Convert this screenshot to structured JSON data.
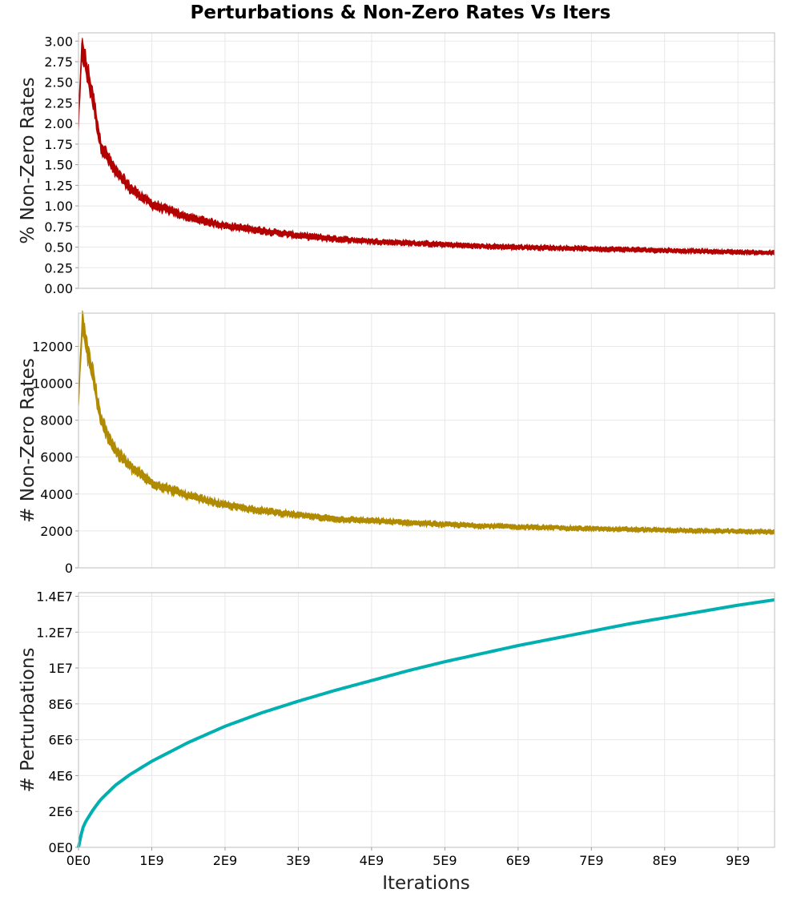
{
  "chart_data": {
    "type": "line",
    "title": "Perturbations & Non-Zero Rates Vs Iters",
    "xlabel": "Iterations",
    "xlim": [
      0,
      9500000000
    ],
    "x_ticks": [
      0,
      1000000000,
      2000000000,
      3000000000,
      4000000000,
      5000000000,
      6000000000,
      7000000000,
      8000000000,
      9000000000
    ],
    "x_tick_labels": [
      "0E0",
      "1E9",
      "2E9",
      "3E9",
      "4E9",
      "5E9",
      "6E9",
      "7E9",
      "8E9",
      "9E9"
    ],
    "panels": [
      {
        "ylabel": "% Non-Zero Rates",
        "ylim": [
          0,
          3.1
        ],
        "y_ticks": [
          0,
          0.25,
          0.5,
          0.75,
          1.0,
          1.25,
          1.5,
          1.75,
          2.0,
          2.25,
          2.5,
          2.75,
          3.0
        ],
        "y_tick_labels": [
          "0.00",
          "0.25",
          "0.50",
          "0.75",
          "1.00",
          "1.25",
          "1.50",
          "1.75",
          "2.00",
          "2.25",
          "2.50",
          "2.75",
          "3.00"
        ],
        "color": "#b30000",
        "style": "noisy-band",
        "series": [
          {
            "x": [
              0,
              50000000,
              100000000,
              200000000,
              300000000,
              500000000,
              700000000,
              1000000000,
              1500000000,
              2000000000,
              2500000000,
              3000000000,
              3500000000,
              4000000000,
              4500000000,
              5000000000,
              5500000000,
              6000000000,
              6500000000,
              7000000000,
              7500000000,
              8000000000,
              8500000000,
              9000000000,
              9500000000
            ],
            "y": [
              2.0,
              2.95,
              2.7,
              2.3,
              1.75,
              1.42,
              1.22,
              1.02,
              0.86,
              0.76,
              0.7,
              0.64,
              0.6,
              0.57,
              0.55,
              0.53,
              0.51,
              0.5,
              0.49,
              0.48,
              0.47,
              0.46,
              0.45,
              0.44,
              0.43
            ]
          }
        ]
      },
      {
        "ylabel": "# Non-Zero Rates",
        "ylim": [
          0,
          13800
        ],
        "y_ticks": [
          0,
          2000,
          4000,
          6000,
          8000,
          10000,
          12000
        ],
        "y_tick_labels": [
          "0",
          "2000",
          "4000",
          "6000",
          "8000",
          "10000",
          "12000"
        ],
        "color": "#b08a00",
        "style": "noisy-band",
        "series": [
          {
            "x": [
              0,
              50000000,
              100000000,
              200000000,
              300000000,
              500000000,
              700000000,
              1000000000,
              1500000000,
              2000000000,
              2500000000,
              3000000000,
              3500000000,
              4000000000,
              4500000000,
              5000000000,
              5500000000,
              6000000000,
              6500000000,
              7000000000,
              7500000000,
              8000000000,
              8500000000,
              9000000000,
              9500000000
            ],
            "y": [
              9000,
              13200,
              12200,
              10400,
              8000,
              6400,
              5500,
              4600,
              3900,
              3400,
              3100,
              2850,
              2650,
              2550,
              2450,
              2350,
              2280,
              2220,
              2170,
              2120,
              2080,
              2040,
              2000,
              1980,
              1950
            ]
          }
        ]
      },
      {
        "ylabel": "# Perturbations",
        "ylim": [
          0,
          14200000
        ],
        "y_ticks": [
          0,
          2000000,
          4000000,
          6000000,
          8000000,
          10000000,
          12000000,
          14000000
        ],
        "y_tick_labels": [
          "0E0",
          "2E6",
          "4E6",
          "6E6",
          "8E6",
          "1E7",
          "1.2E7",
          "1.4E7"
        ],
        "color": "#00b0b0",
        "style": "smooth-line",
        "series": [
          {
            "x": [
              0,
              50000000,
              100000000,
              200000000,
              300000000,
              500000000,
              700000000,
              1000000000,
              1500000000,
              2000000000,
              2500000000,
              3000000000,
              3500000000,
              4000000000,
              4500000000,
              5000000000,
              5500000000,
              6000000000,
              6500000000,
              7000000000,
              7500000000,
              8000000000,
              8500000000,
              9000000000,
              9500000000
            ],
            "y": [
              0,
              1000000,
              1450000,
              2100000,
              2650000,
              3450000,
              4050000,
              4800000,
              5850000,
              6750000,
              7500000,
              8150000,
              8750000,
              9300000,
              9850000,
              10350000,
              10800000,
              11250000,
              11650000,
              12050000,
              12450000,
              12800000,
              13150000,
              13500000,
              13800000
            ]
          }
        ]
      }
    ]
  }
}
